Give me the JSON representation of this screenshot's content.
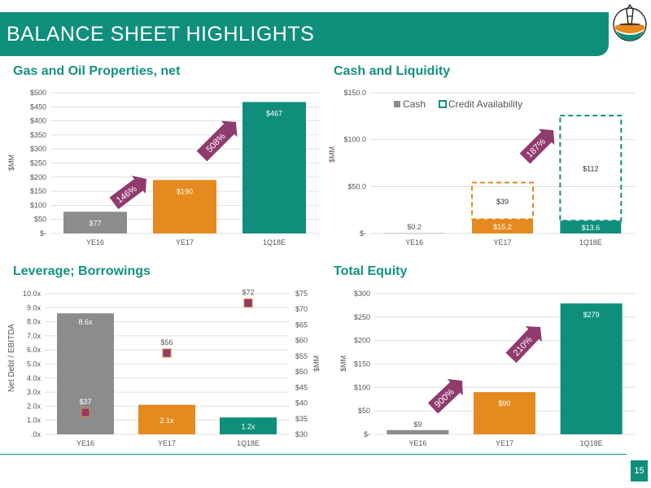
{
  "header": {
    "title": "BALANCE SHEET HIGHLIGHTS"
  },
  "footer": {
    "page_number": "15"
  },
  "colors": {
    "teal": "#0f8f7b",
    "orange": "#e58a1f",
    "gray": "#8c8c8c",
    "purple": "#8f3b6e",
    "green": "#13927d"
  },
  "logo": {
    "icon": "oil-derrick-logo-icon"
  },
  "chart_data": [
    {
      "type": "bar",
      "title": "Gas and Oil Properties, net",
      "ylabel": "$MM",
      "categories": [
        "YE16",
        "YE17",
        "1Q18E"
      ],
      "values": [
        77,
        190,
        467
      ],
      "value_labels": [
        "$77",
        "$190",
        "$467"
      ],
      "ylim": [
        0,
        500
      ],
      "ytick_labels": [
        "$-",
        "$50",
        "$100",
        "$150",
        "$200",
        "$250",
        "$300",
        "$350",
        "$400",
        "$450",
        "$500"
      ],
      "annotations": [
        "146%",
        "508%"
      ]
    },
    {
      "type": "bar",
      "title": "Cash and Liquidity",
      "ylabel": "$MM",
      "categories": [
        "YE16",
        "YE17",
        "1Q18E"
      ],
      "series": [
        {
          "name": "Cash",
          "values": [
            0.2,
            15.2,
            13.6
          ],
          "labels": [
            "$0.2",
            "$15.2",
            "$13.6"
          ]
        },
        {
          "name": "Credit Availability",
          "values": [
            0,
            39,
            112
          ],
          "labels": [
            "",
            "$39",
            "$112"
          ]
        }
      ],
      "ylim": [
        0,
        150
      ],
      "ytick_labels": [
        "$-",
        "$50.0",
        "$100.0",
        "$150.0"
      ],
      "legend": "top-left",
      "annotations": [
        "187%"
      ]
    },
    {
      "type": "bar",
      "title": "Leverage; Borrowings",
      "ylabel": "Net Debt / EBITDA",
      "y2label": "$MM",
      "categories": [
        "YE16",
        "YE17",
        "1Q18E"
      ],
      "series": [
        {
          "values": [
            8.6,
            2.1,
            1.2
          ],
          "labels": [
            "8.6x",
            "2.1x",
            "1.2x"
          ]
        },
        {
          "values": [
            37,
            56,
            72
          ],
          "labels": [
            "$37",
            "$56",
            "$72"
          ]
        }
      ],
      "ylim": [
        0,
        10
      ],
      "y2lim": [
        30,
        75
      ],
      "ytick_labels": [
        ".0x",
        "1.0x",
        "2.0x",
        "3.0x",
        "4.0x",
        "5.0x",
        "6.0x",
        "7.0x",
        "8.0x",
        "9.0x",
        "10.0x"
      ],
      "y2tick_labels": [
        "$30",
        "$35",
        "$40",
        "$45",
        "$50",
        "$55",
        "$60",
        "$65",
        "$70",
        "$75"
      ]
    },
    {
      "type": "bar",
      "title": "Total Equity",
      "ylabel": "$MM",
      "categories": [
        "YE16",
        "YE17",
        "1Q18E"
      ],
      "values": [
        9,
        90,
        279
      ],
      "value_labels": [
        "$9",
        "$90",
        "$279"
      ],
      "ylim": [
        0,
        300
      ],
      "ytick_labels": [
        "$-",
        "$50",
        "$100",
        "$150",
        "$200",
        "$250",
        "$300"
      ],
      "annotations": [
        "900%",
        "210%"
      ]
    }
  ]
}
